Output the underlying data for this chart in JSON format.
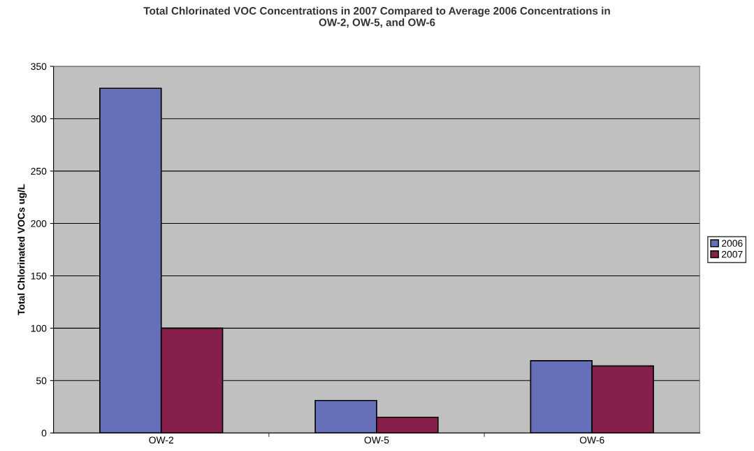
{
  "chart_data": {
    "type": "bar",
    "title": "Total Chlorinated VOC Concentrations in 2007 Compared to Average 2006 Concentrations in\nOW-2, OW-5, and OW-6",
    "ylabel": "Total Chlorinated VOCs ug/L",
    "categories": [
      "OW-2",
      "OW-5",
      "OW-6"
    ],
    "series": [
      {
        "name": "2006",
        "color": "#6670b8",
        "values": [
          329,
          31,
          69
        ]
      },
      {
        "name": "2007",
        "color": "#86204a",
        "values": [
          100,
          15,
          64
        ]
      }
    ],
    "ylim": [
      0,
      350
    ],
    "yticks": [
      0,
      50,
      100,
      150,
      200,
      250,
      300,
      350
    ],
    "grid": "y",
    "legend": "right"
  }
}
